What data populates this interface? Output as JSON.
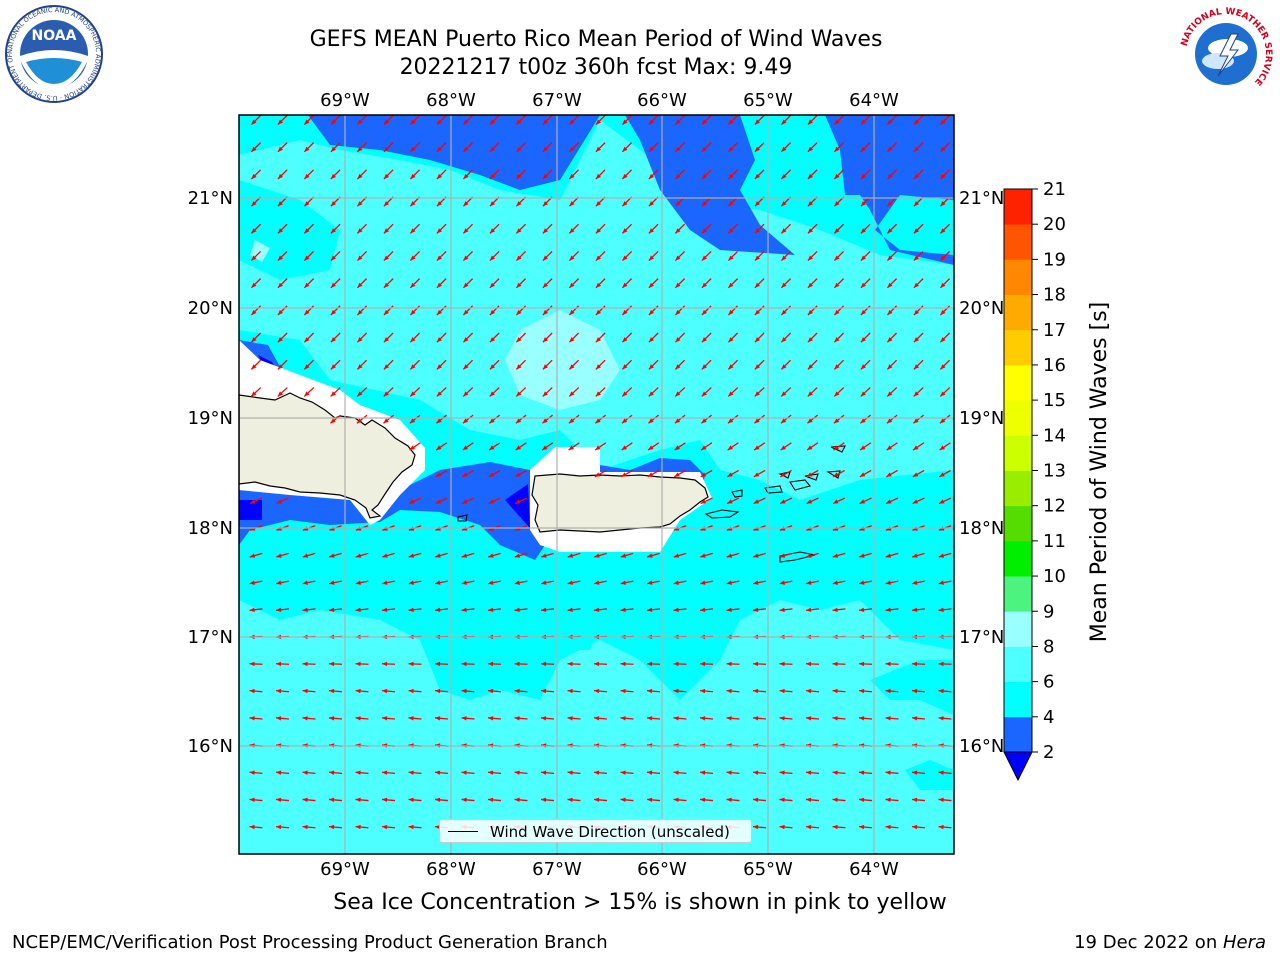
{
  "header": {
    "title_line1": "GEFS MEAN Puerto Rico Mean Period of Wind Waves",
    "title_line2": "20221217 t00z 360h fcst   Max: 9.49"
  },
  "logos": {
    "noaa": {
      "text": "NOAA",
      "ring_text": "NATIONAL OCEANIC AND ATMOSPHERIC ADMINISTRATION · U.S. DEPARTMENT OF COMMERCE"
    },
    "nws": {
      "ring_text": "NATIONAL WEATHER SERVICE"
    }
  },
  "map": {
    "lon_ticks": [
      "69°W",
      "68°W",
      "67°W",
      "66°W",
      "65°W",
      "64°W"
    ],
    "lat_ticks": [
      "21°N",
      "20°N",
      "19°N",
      "18°N",
      "17°N",
      "16°N"
    ],
    "extent": {
      "lon": [
        -70.0,
        -63.25
      ],
      "lat": [
        15.0,
        21.75
      ]
    },
    "land_color": "#efefdf",
    "arrow_color": "#ff0000",
    "prevailing_wind_wave_direction": "northeast-to-southwest (arrows pointing SW / W)"
  },
  "legend": {
    "label": "Wind Wave Direction (unscaled)"
  },
  "colorbar": {
    "title": "Mean Period of Wind Waves [s]",
    "levels": [
      "2",
      "4",
      "6",
      "8",
      "9",
      "10",
      "11",
      "12",
      "13",
      "14",
      "15",
      "16",
      "17",
      "18",
      "19",
      "20",
      "21"
    ],
    "colors": [
      "#1a66ff",
      "#00ffff",
      "#4dffff",
      "#99ffff",
      "#4cf47f",
      "#00ee00",
      "#55dd00",
      "#99ee00",
      "#ccff00",
      "#eeff00",
      "#ffff00",
      "#ffcc00",
      "#ffaa00",
      "#ff8800",
      "#ff5500",
      "#ff2200",
      "#ff0000"
    ],
    "under_color": "#0000ff"
  },
  "footer": {
    "note": "Sea Ice Concentration > 15% is shown in pink to yellow",
    "credit": "NCEP/EMC/Verification Post Processing Product Generation Branch",
    "date": "19 Dec 2022 on ",
    "host": "Hera"
  }
}
